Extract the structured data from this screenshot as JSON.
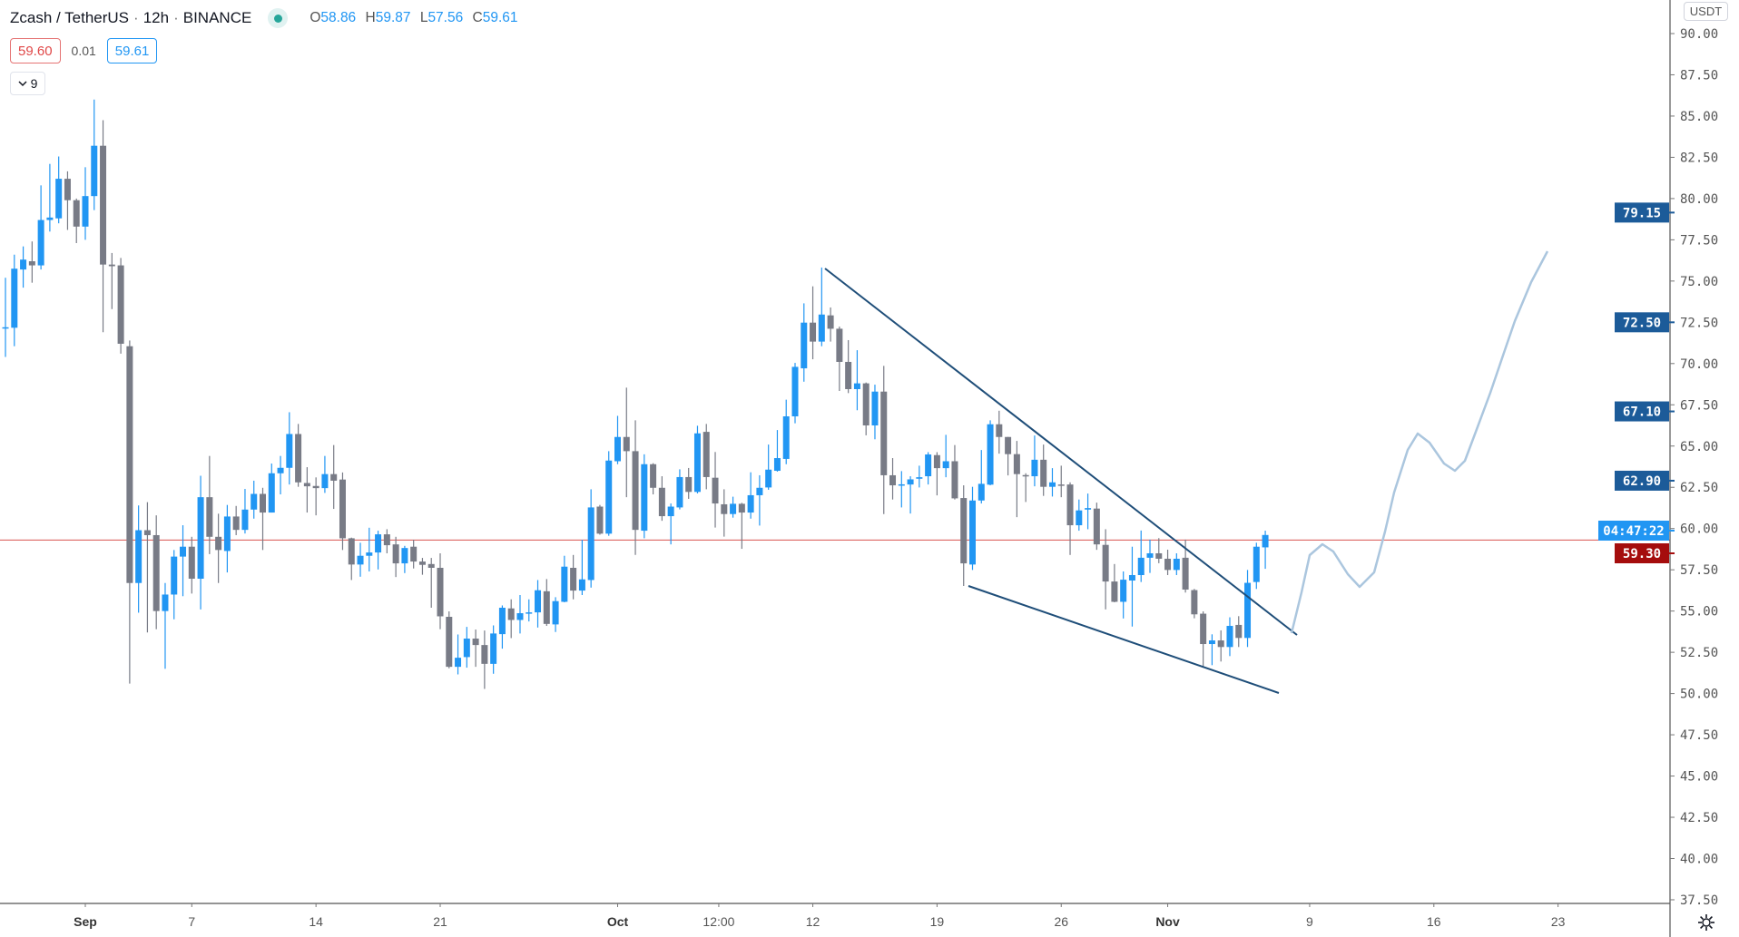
{
  "header": {
    "symbol": "Zcash / TetherUS",
    "interval": "12h",
    "exchange": "BINANCE",
    "separator": "·",
    "ohlc": {
      "o_label": "O",
      "o": "58.86",
      "h_label": "H",
      "h": "59.87",
      "l_label": "L",
      "l": "57.56",
      "c_label": "C",
      "c": "59.61"
    },
    "bid": "59.60",
    "spread": "0.01",
    "ask": "59.61",
    "indicators_count": "9",
    "status_color": "#26a69a"
  },
  "price_axis": {
    "currency": "USDT",
    "ticks": [
      "90.00",
      "87.50",
      "85.00",
      "82.50",
      "80.00",
      "77.50",
      "75.00",
      "72.50",
      "70.00",
      "67.50",
      "65.00",
      "62.50",
      "60.00",
      "57.50",
      "55.00",
      "52.50",
      "50.00",
      "47.50",
      "45.00",
      "42.50",
      "40.00",
      "37.50"
    ],
    "price_labels": [
      {
        "value": "79.15",
        "color": "#1c5b99"
      },
      {
        "value": "72.50",
        "color": "#1c5b99"
      },
      {
        "value": "67.10",
        "color": "#1c5b99"
      },
      {
        "value": "62.90",
        "color": "#1c5b99"
      }
    ],
    "countdown": "04:47:22",
    "countdown_color": "#2196f3",
    "line_label": {
      "value": "59.30",
      "color": "#a50d0d"
    }
  },
  "time_axis": {
    "ticks": [
      "Sep",
      "7",
      "14",
      "21",
      "Oct",
      "12:00",
      "12",
      "19",
      "26",
      "Nov",
      "9",
      "16",
      "23"
    ],
    "bold": [
      "Sep",
      "Oct",
      "Nov"
    ]
  },
  "chart_data": {
    "type": "candlestick",
    "interval": "12h",
    "first_bar": "Aug 27 12:00",
    "ylim": [
      37.5,
      90
    ],
    "grid": false,
    "up_color": "#2196f3",
    "down_color": "#787b86",
    "horizontal_line": 59.3,
    "columns": [
      "open",
      "high",
      "low",
      "close"
    ],
    "ohlc": [
      [
        72.17,
        75.2,
        70.4,
        72.2
      ],
      [
        72.17,
        76.6,
        71.05,
        75.75
      ],
      [
        75.7,
        77.1,
        74.6,
        76.3
      ],
      [
        76.2,
        77.4,
        74.9,
        75.95
      ],
      [
        75.95,
        80.8,
        75.7,
        78.7
      ],
      [
        78.7,
        82.1,
        78.0,
        78.85
      ],
      [
        78.8,
        82.55,
        78.5,
        81.2
      ],
      [
        81.2,
        81.65,
        78.1,
        79.9
      ],
      [
        79.9,
        80.0,
        77.3,
        78.3
      ],
      [
        78.3,
        81.9,
        77.5,
        80.15
      ],
      [
        80.15,
        86.0,
        79.3,
        83.2
      ],
      [
        83.2,
        84.75,
        71.9,
        76.0
      ],
      [
        76.0,
        76.7,
        73.3,
        75.9
      ],
      [
        75.95,
        76.4,
        70.6,
        71.2
      ],
      [
        71.05,
        71.4,
        50.6,
        56.7
      ],
      [
        56.7,
        61.4,
        54.9,
        59.9
      ],
      [
        59.9,
        61.6,
        53.7,
        59.6
      ],
      [
        59.6,
        60.8,
        53.9,
        55.0
      ],
      [
        55.0,
        56.7,
        51.5,
        56.0
      ],
      [
        56.0,
        58.7,
        54.5,
        58.3
      ],
      [
        58.3,
        60.2,
        55.9,
        58.9
      ],
      [
        58.9,
        59.5,
        56.06,
        56.96
      ],
      [
        56.96,
        63.2,
        55.1,
        61.9
      ],
      [
        61.9,
        64.4,
        58.45,
        59.5
      ],
      [
        59.5,
        60.9,
        56.7,
        58.7
      ],
      [
        58.64,
        61.43,
        57.34,
        60.73
      ],
      [
        60.73,
        61.37,
        59.6,
        59.92
      ],
      [
        59.92,
        62.4,
        59.7,
        61.15
      ],
      [
        61.15,
        62.9,
        60.6,
        62.1
      ],
      [
        62.1,
        62.47,
        58.7,
        60.97
      ],
      [
        60.97,
        63.94,
        60.97,
        63.35
      ],
      [
        63.35,
        64.4,
        62.07,
        63.68
      ],
      [
        63.68,
        67.05,
        62.67,
        65.73
      ],
      [
        65.73,
        66.34,
        62.53,
        62.8
      ],
      [
        62.76,
        63.72,
        60.97,
        62.56
      ],
      [
        62.58,
        63.1,
        60.8,
        62.45
      ],
      [
        62.45,
        64.4,
        62.16,
        63.3
      ],
      [
        63.3,
        65.06,
        61.19,
        62.9
      ],
      [
        62.97,
        63.4,
        58.7,
        59.41
      ],
      [
        59.41,
        59.45,
        56.88,
        57.82
      ],
      [
        57.82,
        59.14,
        57.08,
        58.35
      ],
      [
        58.35,
        60.05,
        57.4,
        58.55
      ],
      [
        58.55,
        59.87,
        57.52,
        59.65
      ],
      [
        59.65,
        59.96,
        58.5,
        58.99
      ],
      [
        59.04,
        59.5,
        57.06,
        57.89
      ],
      [
        57.89,
        58.95,
        57.3,
        58.82
      ],
      [
        58.9,
        59.32,
        57.58,
        58.0
      ],
      [
        58.0,
        58.22,
        57.2,
        57.8
      ],
      [
        57.85,
        58.22,
        55.2,
        57.62
      ],
      [
        57.62,
        58.5,
        53.9,
        54.68
      ],
      [
        54.65,
        54.98,
        51.53,
        51.62
      ],
      [
        51.62,
        53.58,
        51.16,
        52.17
      ],
      [
        52.21,
        54.04,
        51.57,
        53.33
      ],
      [
        53.33,
        53.88,
        51.62,
        52.94
      ],
      [
        52.94,
        53.82,
        50.28,
        51.8
      ],
      [
        51.8,
        54.13,
        51.2,
        53.64
      ],
      [
        53.6,
        55.34,
        52.72,
        55.2
      ],
      [
        55.16,
        55.71,
        53.36,
        54.46
      ],
      [
        54.46,
        55.97,
        53.64,
        54.87
      ],
      [
        54.87,
        55.71,
        54.37,
        54.92
      ],
      [
        54.92,
        56.88,
        54.0,
        56.26
      ],
      [
        56.2,
        56.94,
        54.1,
        54.22
      ],
      [
        54.19,
        55.84,
        53.73,
        55.6
      ],
      [
        55.56,
        58.35,
        55.53,
        57.69
      ],
      [
        57.62,
        58.4,
        55.71,
        56.24
      ],
      [
        56.24,
        59.32,
        55.97,
        56.92
      ],
      [
        56.88,
        62.38,
        56.42,
        61.28
      ],
      [
        61.33,
        61.43,
        59.63,
        59.69
      ],
      [
        59.69,
        64.69,
        59.56,
        64.12
      ],
      [
        64.08,
        66.83,
        63.9,
        65.55
      ],
      [
        65.55,
        68.54,
        61.9,
        64.69
      ],
      [
        64.69,
        66.56,
        58.4,
        59.92
      ],
      [
        59.87,
        64.5,
        59.41,
        63.9
      ],
      [
        63.9,
        63.96,
        62.07,
        62.47
      ],
      [
        62.47,
        63.17,
        60.47,
        60.75
      ],
      [
        60.75,
        61.52,
        59.04,
        61.33
      ],
      [
        61.28,
        63.59,
        61.16,
        63.12
      ],
      [
        63.12,
        63.67,
        61.8,
        62.22
      ],
      [
        62.22,
        66.23,
        62.13,
        65.77
      ],
      [
        65.86,
        66.34,
        62.38,
        63.12
      ],
      [
        63.08,
        64.64,
        60.06,
        61.52
      ],
      [
        61.47,
        62.38,
        59.51,
        60.88
      ],
      [
        60.88,
        61.93,
        60.66,
        61.5
      ],
      [
        61.5,
        61.56,
        58.77,
        60.97
      ],
      [
        60.97,
        63.41,
        60.6,
        62.02
      ],
      [
        62.02,
        63.23,
        60.18,
        62.47
      ],
      [
        62.49,
        65.09,
        62.35,
        63.57
      ],
      [
        63.5,
        65.97,
        63.45,
        64.27
      ],
      [
        64.22,
        67.81,
        63.9,
        66.8
      ],
      [
        66.8,
        70.04,
        66.38,
        69.8
      ],
      [
        69.71,
        73.65,
        68.9,
        72.48
      ],
      [
        72.48,
        74.68,
        70.26,
        71.33
      ],
      [
        71.33,
        75.82,
        71.05,
        72.97
      ],
      [
        72.92,
        73.4,
        71.33,
        72.11
      ],
      [
        72.11,
        72.24,
        68.34,
        70.1
      ],
      [
        70.1,
        71.42,
        68.21,
        68.45
      ],
      [
        68.45,
        70.81,
        67.17,
        68.8
      ],
      [
        68.8,
        68.85,
        65.65,
        66.25
      ],
      [
        66.25,
        68.72,
        65.41,
        68.3
      ],
      [
        68.3,
        69.86,
        60.88,
        63.23
      ],
      [
        63.23,
        64.27,
        61.76,
        62.62
      ],
      [
        62.62,
        63.48,
        61.28,
        62.68
      ],
      [
        62.67,
        63.17,
        60.91,
        62.98
      ],
      [
        63.02,
        63.81,
        62.49,
        63.11
      ],
      [
        63.17,
        64.63,
        62.67,
        64.49
      ],
      [
        64.45,
        64.63,
        62.01,
        63.66
      ],
      [
        63.66,
        65.68,
        63.11,
        64.08
      ],
      [
        64.08,
        65.06,
        61.76,
        61.83
      ],
      [
        61.85,
        62.62,
        56.52,
        57.89
      ],
      [
        57.82,
        62.53,
        57.49,
        61.7
      ],
      [
        61.7,
        64.76,
        61.52,
        62.71
      ],
      [
        62.66,
        66.56,
        62.62,
        66.32
      ],
      [
        66.32,
        67.14,
        64.54,
        65.55
      ],
      [
        65.55,
        65.55,
        63.22,
        64.51
      ],
      [
        64.51,
        65.31,
        60.69,
        63.3
      ],
      [
        63.24,
        63.35,
        61.61,
        63.17
      ],
      [
        63.17,
        65.64,
        62.56,
        64.17
      ],
      [
        64.17,
        65.09,
        61.98,
        62.53
      ],
      [
        62.53,
        63.66,
        61.94,
        62.8
      ],
      [
        62.67,
        63.81,
        61.9,
        62.66
      ],
      [
        62.67,
        62.8,
        58.4,
        60.2
      ],
      [
        60.2,
        61.76,
        59.87,
        61.1
      ],
      [
        61.15,
        62.12,
        59.96,
        61.24
      ],
      [
        61.21,
        61.57,
        58.71,
        59.04
      ],
      [
        59.01,
        59.96,
        55.1,
        56.79
      ],
      [
        56.79,
        57.85,
        55.53,
        55.56
      ],
      [
        55.56,
        57.4,
        54.55,
        56.9
      ],
      [
        56.85,
        58.9,
        54.06,
        57.18
      ],
      [
        57.18,
        59.88,
        56.76,
        58.23
      ],
      [
        58.23,
        59.33,
        57.31,
        58.5
      ],
      [
        58.5,
        59.42,
        57.9,
        58.17
      ],
      [
        58.17,
        58.72,
        57.18,
        57.49
      ],
      [
        57.49,
        58.5,
        57.18,
        58.17
      ],
      [
        58.23,
        59.33,
        56.12,
        56.3
      ],
      [
        56.27,
        56.34,
        54.56,
        54.8
      ],
      [
        54.84,
        54.98,
        51.57,
        53.0
      ],
      [
        53.0,
        53.59,
        51.72,
        53.22
      ],
      [
        53.22,
        53.83,
        51.94,
        52.82
      ],
      [
        52.82,
        54.62,
        52.27,
        54.1
      ],
      [
        54.16,
        54.69,
        52.82,
        53.37
      ],
      [
        53.37,
        57.49,
        52.82,
        56.71
      ],
      [
        56.76,
        59.14,
        56.34,
        58.9
      ],
      [
        58.86,
        59.87,
        57.56,
        59.61
      ]
    ]
  }
}
